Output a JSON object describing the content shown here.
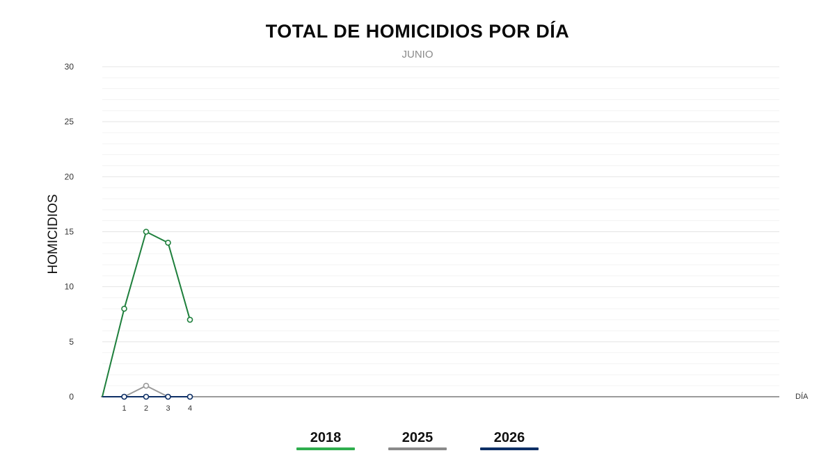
{
  "chart_data": {
    "type": "line",
    "title": "TOTAL DE HOMICIDIOS POR DÍA",
    "subtitle": "JUNIO",
    "xlabel": "DÍA",
    "ylabel": "HOMICIDIOS",
    "ylim": [
      0,
      30
    ],
    "y_ticks": [
      0,
      5,
      10,
      15,
      20,
      25,
      30
    ],
    "x_ticks": [
      1,
      2,
      3,
      4
    ],
    "grid": true,
    "legend_position": "bottom",
    "series": [
      {
        "name": "2018",
        "color": "#1e7f3c",
        "legend_color": "#2fae4e",
        "x": [
          0,
          1,
          2,
          3,
          4
        ],
        "values": [
          0,
          8,
          15,
          14,
          7
        ]
      },
      {
        "name": "2025",
        "color": "#9a9a9a",
        "legend_color": "#8a8a8a",
        "x": [
          0,
          1,
          2,
          3,
          4
        ],
        "values": [
          0,
          0,
          1,
          0,
          0
        ]
      },
      {
        "name": "2026",
        "color": "#0d2f66",
        "legend_color": "#0d2f66",
        "x": [
          0,
          1,
          2,
          3,
          4
        ],
        "values": [
          0,
          0,
          0,
          0,
          0
        ]
      }
    ]
  }
}
